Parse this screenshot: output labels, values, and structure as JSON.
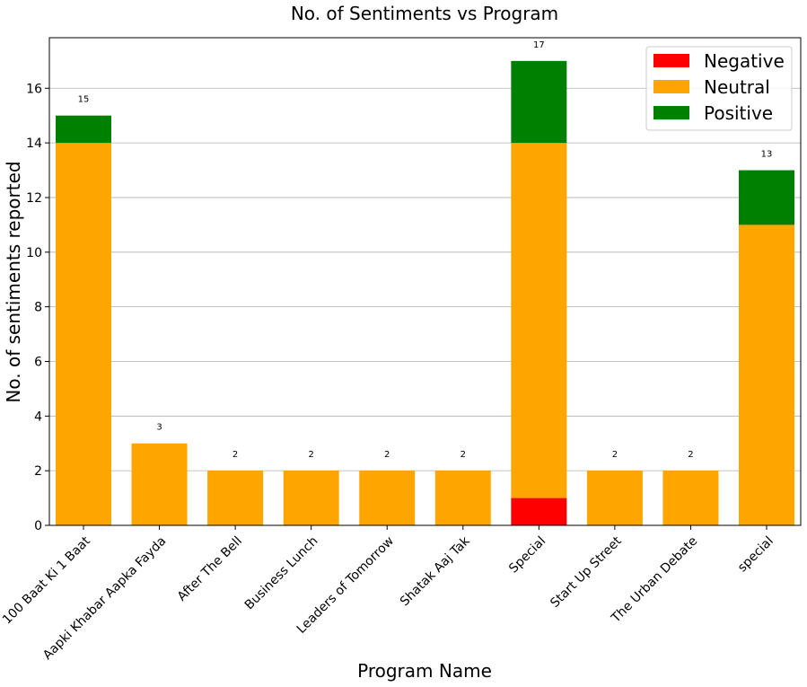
{
  "chart_data": {
    "type": "bar",
    "stacked": true,
    "title": "No. of Sentiments vs Program",
    "xlabel": "Program Name",
    "ylabel": "No. of sentiments reported",
    "categories": [
      "100 Baat Ki 1 Baat",
      "Aapki Khabar Aapka Fayda",
      "After The Bell",
      "Business Lunch",
      "Leaders of Tomorrow",
      "Shatak Aaj Tak",
      "Special",
      "Start Up Street",
      "The Urban Debate",
      "special"
    ],
    "series": [
      {
        "name": "Negative",
        "color": "#ff0000",
        "values": [
          0,
          0,
          0,
          0,
          0,
          0,
          1,
          0,
          0,
          0
        ]
      },
      {
        "name": "Neutral",
        "color": "#ffa500",
        "values": [
          14,
          3,
          2,
          2,
          2,
          2,
          13,
          2,
          2,
          11
        ]
      },
      {
        "name": "Positive",
        "color": "#008000",
        "values": [
          1,
          0,
          0,
          0,
          0,
          0,
          3,
          0,
          0,
          2
        ]
      }
    ],
    "totals": [
      "15",
      "3",
      "2",
      "2",
      "2",
      "2",
      "17",
      "2",
      "2",
      "13"
    ],
    "ylim": [
      0,
      17.85
    ],
    "yticks": [
      "0",
      "2",
      "4",
      "6",
      "8",
      "10",
      "12",
      "14",
      "16"
    ],
    "grid": "horizontal",
    "legend_position": "top-right"
  }
}
